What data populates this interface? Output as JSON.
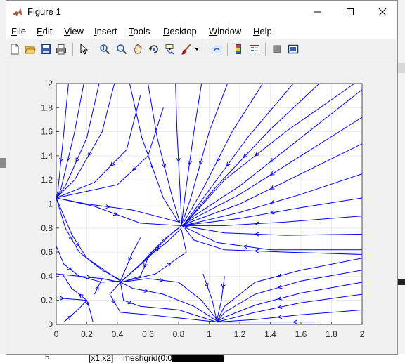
{
  "window": {
    "title": "Figure 1",
    "controls": {
      "minimize": "—",
      "maximize": "☐",
      "close": "✕"
    }
  },
  "menu": [
    {
      "key": "F",
      "rest": "ile"
    },
    {
      "key": "E",
      "rest": "dit"
    },
    {
      "key": "V",
      "rest": "iew"
    },
    {
      "key": "I",
      "rest": "nsert"
    },
    {
      "key": "T",
      "rest": "ools"
    },
    {
      "key": "D",
      "rest": "esktop"
    },
    {
      "key": "W",
      "rest": "indow"
    },
    {
      "key": "H",
      "rest": "elp"
    }
  ],
  "toolbar_icons": [
    "new-figure-icon",
    "open-file-icon",
    "save-icon",
    "print-icon",
    "select-arrow-icon",
    "zoom-in-icon",
    "zoom-out-icon",
    "pan-icon",
    "rotate-3d-icon",
    "data-cursor-icon",
    "brush-icon",
    "brush-dropdown-icon",
    "link-plot-icon",
    "colorbar-icon",
    "legend-icon",
    "hide-plot-tools-icon",
    "show-plot-tools-icon"
  ],
  "background": {
    "line_number": "5",
    "code": "[x1,x2] = meshgrid(0:0"
  },
  "chart_data": {
    "type": "streamline",
    "xlim": [
      0,
      2
    ],
    "ylim": [
      0,
      2
    ],
    "xticks": [
      "0",
      "0.2",
      "0.4",
      "0.6",
      "0.8",
      "1",
      "1.2",
      "1.4",
      "1.6",
      "1.8",
      "2"
    ],
    "yticks": [
      "0",
      "0.2",
      "0.4",
      "0.6",
      "0.8",
      "1",
      "1.2",
      "1.4",
      "1.6",
      "1.8",
      "2"
    ],
    "grid": true,
    "line_color": "#0000ff",
    "equilibria": [
      [
        0,
        1.05
      ],
      [
        0.82,
        0.82
      ],
      [
        0.42,
        0.35
      ],
      [
        1.05,
        0.02
      ],
      [
        0.2,
        0.2
      ]
    ]
  }
}
